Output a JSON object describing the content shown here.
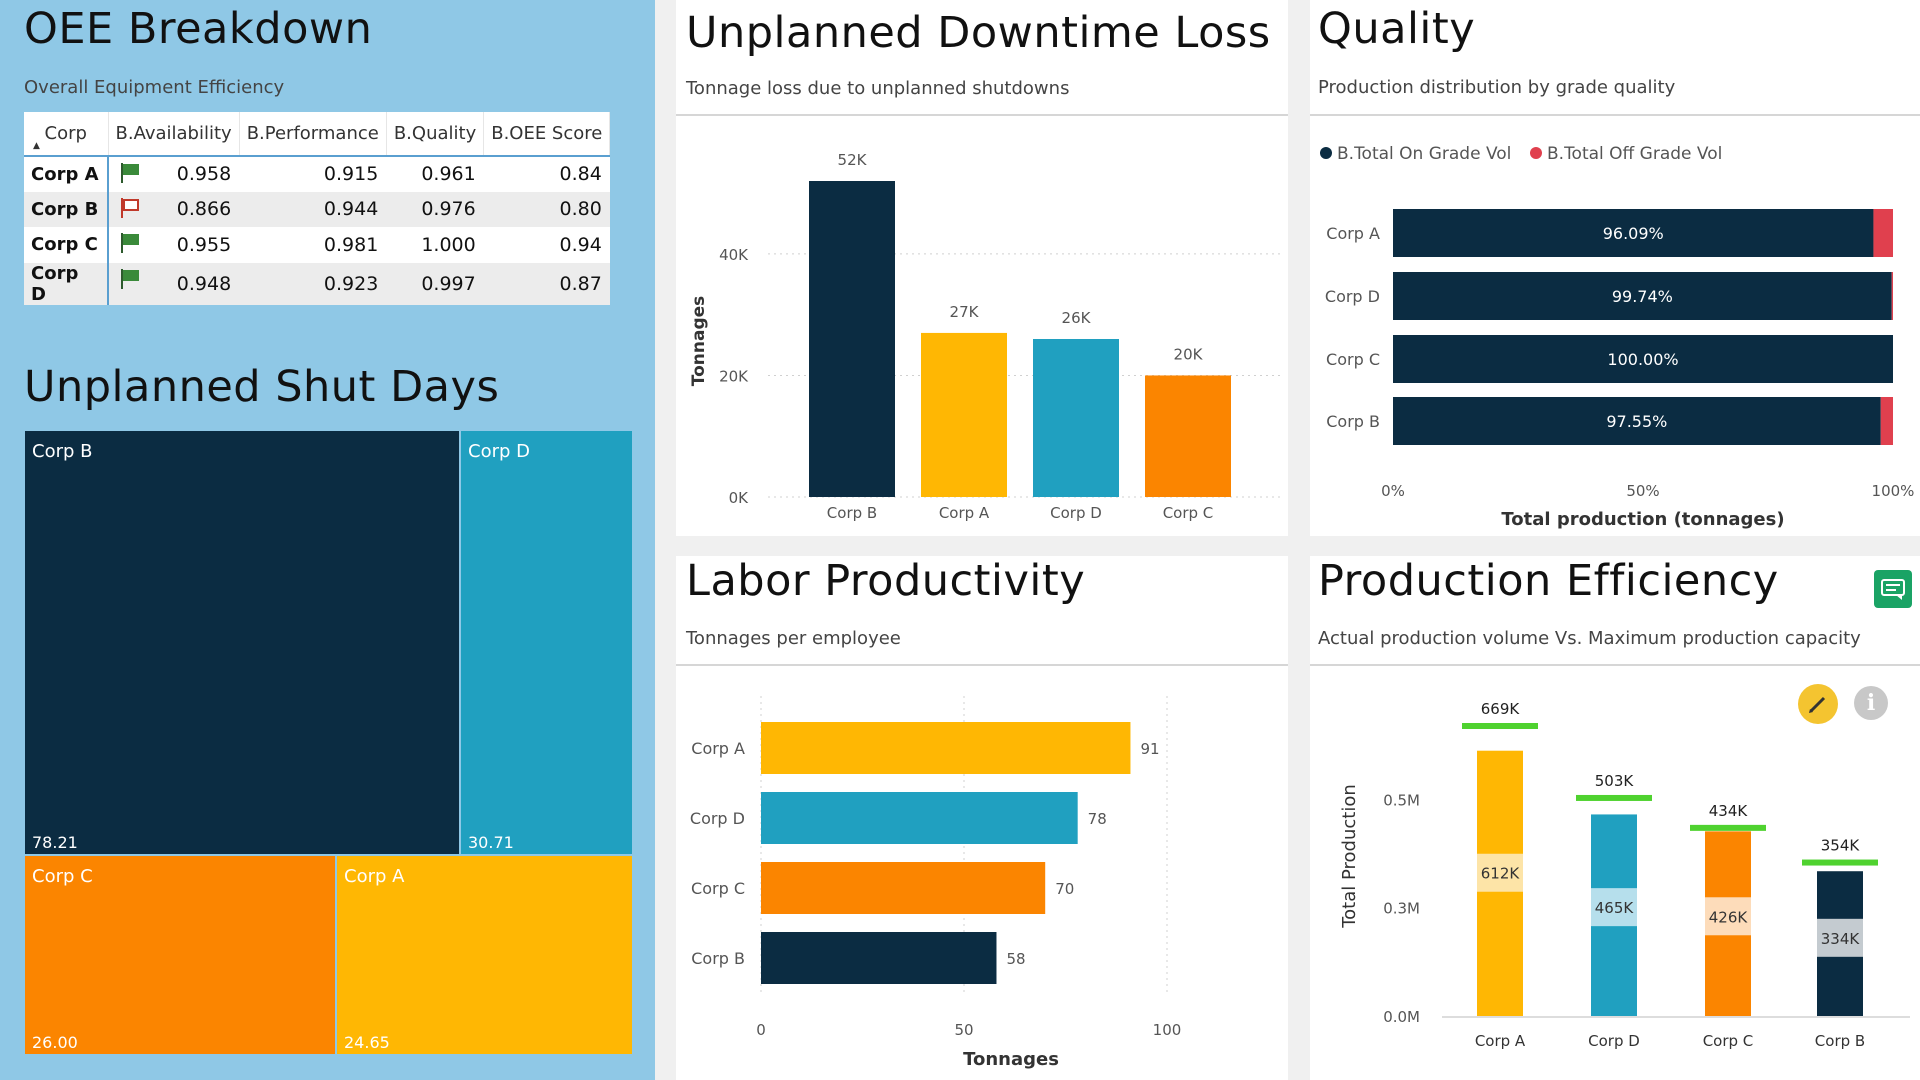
{
  "oee": {
    "title": "OEE Breakdown",
    "subtitle": "Overall Equipment Efficiency",
    "columns": [
      "Corp",
      "B.Availability",
      "B.Performance",
      "B.Quality",
      "B.OEE Score"
    ],
    "rows": [
      {
        "corp": "Corp A",
        "flag": "green",
        "availability": "0.958",
        "performance": "0.915",
        "quality": "0.961",
        "oee": "0.84"
      },
      {
        "corp": "Corp B",
        "flag": "red",
        "availability": "0.866",
        "performance": "0.944",
        "quality": "0.976",
        "oee": "0.80"
      },
      {
        "corp": "Corp C",
        "flag": "green",
        "availability": "0.955",
        "performance": "0.981",
        "quality": "1.000",
        "oee": "0.94"
      },
      {
        "corp": "Corp D",
        "flag": "green",
        "availability": "0.948",
        "performance": "0.923",
        "quality": "0.997",
        "oee": "0.87"
      }
    ]
  },
  "shut_days": {
    "title": "Unplanned Shut Days",
    "tiles": [
      {
        "label": "Corp B",
        "value": "78.21",
        "color": "#0b2c42"
      },
      {
        "label": "Corp D",
        "value": "30.71",
        "color": "#20a0c0"
      },
      {
        "label": "Corp C",
        "value": "26.00",
        "color": "#fb8500"
      },
      {
        "label": "Corp A",
        "value": "24.65",
        "color": "#ffb703"
      }
    ]
  },
  "downtime": {
    "title": "Unplanned Downtime Loss",
    "subtitle": "Tonnage loss due to unplanned shutdowns"
  },
  "quality": {
    "title": "Quality",
    "subtitle": "Production distribution by grade quality"
  },
  "labor": {
    "title": "Labor Productivity",
    "subtitle": "Tonnages per employee"
  },
  "efficiency": {
    "title": "Production Efficiency",
    "subtitle": "Actual production volume Vs. Maximum production capacity",
    "icons": [
      "comment-icon",
      "pencil-icon",
      "info-icon"
    ]
  },
  "colors": {
    "navy": "#0b2c42",
    "yellow": "#ffb703",
    "teal": "#20a0c0",
    "orange": "#fb8500",
    "red": "#e0404e",
    "green": "#4fd22f"
  },
  "chart_data": [
    {
      "type": "treemap",
      "title": "Unplanned Shut Days",
      "categories": [
        "Corp B",
        "Corp D",
        "Corp C",
        "Corp A"
      ],
      "values": [
        78.21,
        30.71,
        26.0,
        24.65
      ]
    },
    {
      "type": "bar",
      "title": "Unplanned Downtime Loss",
      "categories": [
        "Corp B",
        "Corp A",
        "Corp D",
        "Corp C"
      ],
      "values": [
        52000,
        27000,
        26000,
        20000
      ],
      "data_labels": [
        "52K",
        "27K",
        "26K",
        "20K"
      ],
      "ylabel": "Tonnages",
      "yticks": [
        "0K",
        "20K",
        "40K"
      ],
      "ylim": [
        0,
        52000
      ],
      "grid": true
    },
    {
      "type": "bar",
      "orientation": "horizontal",
      "stacked": "percent",
      "title": "Quality",
      "categories": [
        "Corp A",
        "Corp D",
        "Corp C",
        "Corp B"
      ],
      "series": [
        {
          "name": "B.Total On Grade Vol",
          "values": [
            96.09,
            99.74,
            100.0,
            97.55
          ]
        },
        {
          "name": "B.Total Off Grade Vol",
          "values": [
            3.91,
            0.26,
            0.0,
            2.45
          ]
        }
      ],
      "data_labels": [
        "96.09%",
        "99.74%",
        "100.00%",
        "97.55%"
      ],
      "xlabel": "Total production (tonnages)",
      "xticks": [
        "0%",
        "50%",
        "100%"
      ],
      "xlim": [
        0,
        100
      ],
      "legend": "top-left"
    },
    {
      "type": "bar",
      "orientation": "horizontal",
      "title": "Labor Productivity",
      "categories": [
        "Corp A",
        "Corp D",
        "Corp C",
        "Corp B"
      ],
      "values": [
        91,
        78,
        70,
        58
      ],
      "xlabel": "Tonnages",
      "xticks": [
        "0",
        "50",
        "100"
      ],
      "xlim": [
        0,
        100
      ],
      "grid": true
    },
    {
      "type": "bar",
      "title": "Production Efficiency",
      "categories": [
        "Corp A",
        "Corp D",
        "Corp C",
        "Corp B"
      ],
      "values": [
        612000,
        465000,
        426000,
        334000
      ],
      "value_labels": [
        "612K",
        "465K",
        "426K",
        "334K"
      ],
      "capacity": [
        669000,
        503000,
        434000,
        354000
      ],
      "capacity_labels": [
        "669K",
        "503K",
        "434K",
        "354K"
      ],
      "ylabel": "Total Production",
      "yticks": [
        "0.0M",
        "0.3M",
        "0.5M"
      ],
      "ylim": [
        0,
        700000
      ]
    }
  ]
}
